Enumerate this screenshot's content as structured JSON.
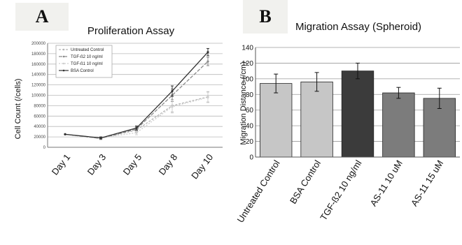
{
  "panels": {
    "a_label": "A",
    "b_label": "B"
  },
  "chart_data": [
    {
      "type": "line",
      "title": "Proliferation Assay",
      "xlabel": "",
      "ylabel": "Cell Count (/cells)",
      "categories": [
        "Day 1",
        "Day 3",
        "Day 5",
        "Day 8",
        "Day 10"
      ],
      "ylim": [
        0,
        200000
      ],
      "yticks": [
        0,
        20000,
        40000,
        60000,
        80000,
        100000,
        120000,
        140000,
        160000,
        180000,
        200000
      ],
      "grid": true,
      "legend_position": "top-left",
      "series": [
        {
          "name": "Untreated Control",
          "values": [
            25000,
            17000,
            33000,
            80000,
            97000
          ],
          "errors": [
            0,
            2000,
            4000,
            12000,
            10000
          ],
          "color": "#b5b5b5",
          "dash": "3,2"
        },
        {
          "name": "TGF-ß2 10 ng/ml",
          "values": [
            25000,
            17000,
            35000,
            100000,
            165000
          ],
          "errors": [
            0,
            2000,
            4000,
            12000,
            8000
          ],
          "color": "#8a8a8a",
          "dash": "5,2"
        },
        {
          "name": "TGF-ß1 10 ng/ml",
          "values": [
            25000,
            18000,
            28000,
            78000,
            96000
          ],
          "errors": [
            0,
            2000,
            4000,
            12000,
            10000
          ],
          "color": "#cfcfcf",
          "dash": "2,2"
        },
        {
          "name": "BSA Control",
          "values": [
            25000,
            18000,
            37000,
            108000,
            183000
          ],
          "errors": [
            0,
            2000,
            4000,
            10000,
            7000
          ],
          "color": "#333333",
          "dash": ""
        }
      ]
    },
    {
      "type": "bar",
      "title": "Migration Assay (Spheroid)",
      "xlabel": "",
      "ylabel": "Migration Distance (/cm)",
      "categories": [
        "Untreated Control",
        "BSA Control",
        "TGF-ß2 10 ng/ml",
        "AS-11 10 uM",
        "AS-11 15 uM"
      ],
      "values": [
        94,
        96,
        110,
        82,
        75
      ],
      "errors": [
        12,
        12,
        10,
        7,
        13
      ],
      "colors": [
        "#c6c6c6",
        "#c6c6c6",
        "#3b3b3b",
        "#7c7c7c",
        "#7c7c7c"
      ],
      "ylim": [
        0,
        140
      ],
      "yticks": [
        0,
        20,
        40,
        60,
        80,
        100,
        120,
        140
      ],
      "grid": true
    }
  ]
}
